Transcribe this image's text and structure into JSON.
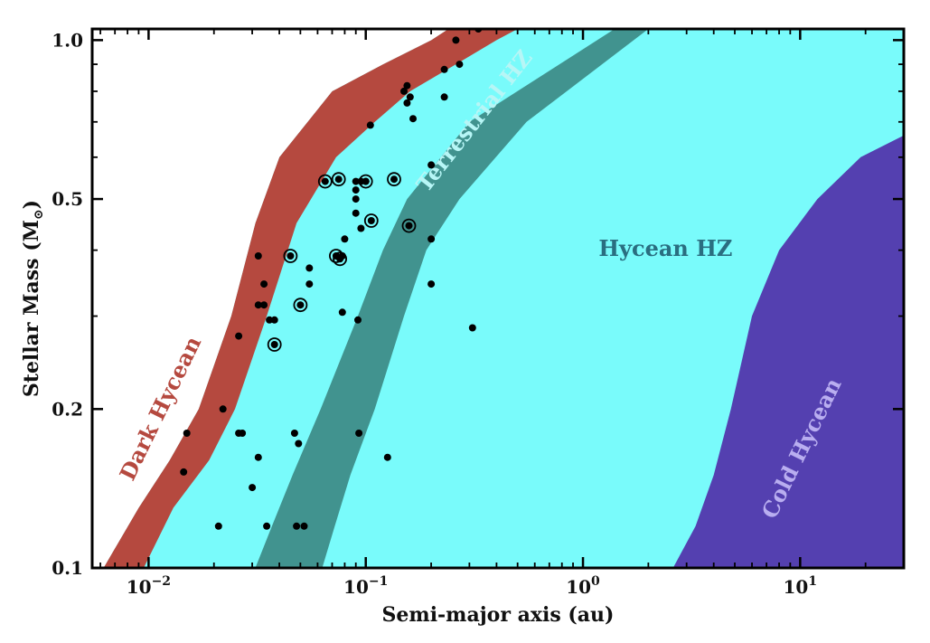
{
  "chart_data": {
    "type": "scatter",
    "xlabel": "Semi-major axis (au)",
    "ylabel": "Stellar Mass (M",
    "ylabel_symbol": "⊙",
    "ylabel_close": ")",
    "xscale": "log",
    "yscale": "log",
    "xlim": [
      0.0055,
      30
    ],
    "ylim": [
      0.1,
      1.05
    ],
    "x_ticks": [
      {
        "value": 0.01,
        "base": "10",
        "exp": "−2"
      },
      {
        "value": 0.1,
        "base": "10",
        "exp": "−1"
      },
      {
        "value": 1,
        "base": "10",
        "exp": "0"
      },
      {
        "value": 10,
        "base": "10",
        "exp": "1"
      }
    ],
    "y_ticks": [
      {
        "value": 0.1,
        "label": "0.1"
      },
      {
        "value": 0.2,
        "label": "0.2"
      },
      {
        "value": 0.5,
        "label": "0.5"
      },
      {
        "value": 1.0,
        "label": "1.0"
      }
    ],
    "colors": {
      "hycean": "#79fbfb",
      "dark": "#b5493f",
      "terrestrial": "#41938f",
      "cold": "#5440b0",
      "points": "#000000"
    },
    "regions": [
      {
        "name": "Dark Hycean",
        "key": "dark",
        "left": [
          [
            0.1,
            0.0062
          ],
          [
            0.13,
            0.009
          ],
          [
            0.16,
            0.0125
          ],
          [
            0.2,
            0.017
          ],
          [
            0.3,
            0.024
          ],
          [
            0.45,
            0.031
          ],
          [
            0.6,
            0.04
          ],
          [
            0.8,
            0.07
          ],
          [
            0.9,
            0.12
          ],
          [
            1.0,
            0.2
          ],
          [
            1.05,
            0.24
          ]
        ],
        "right": [
          [
            0.1,
            0.0095
          ],
          [
            0.13,
            0.013
          ],
          [
            0.16,
            0.019
          ],
          [
            0.2,
            0.025
          ],
          [
            0.3,
            0.035
          ],
          [
            0.45,
            0.048
          ],
          [
            0.6,
            0.073
          ],
          [
            0.7,
            0.11
          ],
          [
            0.8,
            0.16
          ],
          [
            0.9,
            0.26
          ],
          [
            1.0,
            0.4
          ],
          [
            1.05,
            0.5
          ]
        ]
      },
      {
        "name": "Terrestrial HZ",
        "key": "terrestrial",
        "left": [
          [
            0.1,
            0.031
          ],
          [
            0.12,
            0.037
          ],
          [
            0.15,
            0.046
          ],
          [
            0.2,
            0.062
          ],
          [
            0.3,
            0.092
          ],
          [
            0.4,
            0.12
          ],
          [
            0.5,
            0.155
          ],
          [
            0.7,
            0.3
          ],
          [
            1.05,
            1.4
          ]
        ],
        "right": [
          [
            0.1,
            0.063
          ],
          [
            0.12,
            0.072
          ],
          [
            0.15,
            0.085
          ],
          [
            0.2,
            0.11
          ],
          [
            0.3,
            0.15
          ],
          [
            0.4,
            0.19
          ],
          [
            0.5,
            0.27
          ],
          [
            0.7,
            0.55
          ],
          [
            1.05,
            2.0
          ]
        ]
      },
      {
        "name": "Cold Hycean",
        "key": "cold",
        "left": [
          [
            0.1,
            2.6
          ],
          [
            0.12,
            3.3
          ],
          [
            0.15,
            4.0
          ],
          [
            0.2,
            4.8
          ],
          [
            0.3,
            6.0
          ],
          [
            0.4,
            8.0
          ],
          [
            0.5,
            12
          ],
          [
            0.6,
            19
          ],
          [
            0.66,
            30
          ]
        ]
      }
    ],
    "region_labels": [
      {
        "text": "Dark Hycean",
        "key": "dark"
      },
      {
        "text": "Terrestrial HZ",
        "key": "terrestrial"
      },
      {
        "text": "Hycean HZ",
        "key": "hycean_label"
      },
      {
        "text": "Cold Hycean",
        "key": "cold_label"
      }
    ],
    "points": [
      [
        0.33,
        1.05
      ],
      [
        0.26,
        1.0
      ],
      [
        0.27,
        0.9
      ],
      [
        0.23,
        0.88
      ],
      [
        0.155,
        0.82
      ],
      [
        0.15,
        0.8
      ],
      [
        0.16,
        0.78
      ],
      [
        0.23,
        0.78
      ],
      [
        0.155,
        0.76
      ],
      [
        0.165,
        0.71
      ],
      [
        0.105,
        0.69
      ],
      [
        0.2,
        0.58
      ],
      [
        0.09,
        0.54
      ],
      [
        0.095,
        0.54
      ],
      [
        0.1,
        0.54
      ],
      [
        0.09,
        0.52
      ],
      [
        0.09,
        0.5
      ],
      [
        0.09,
        0.47
      ],
      [
        0.095,
        0.44
      ],
      [
        0.2,
        0.42
      ],
      [
        0.08,
        0.42
      ],
      [
        0.055,
        0.37
      ],
      [
        0.078,
        0.39
      ],
      [
        0.032,
        0.39
      ],
      [
        0.055,
        0.345
      ],
      [
        0.034,
        0.345
      ],
      [
        0.2,
        0.345
      ],
      [
        0.032,
        0.315
      ],
      [
        0.034,
        0.315
      ],
      [
        0.078,
        0.305
      ],
      [
        0.036,
        0.295
      ],
      [
        0.038,
        0.295
      ],
      [
        0.092,
        0.295
      ],
      [
        0.31,
        0.285
      ],
      [
        0.026,
        0.275
      ],
      [
        0.022,
        0.2
      ],
      [
        0.015,
        0.18
      ],
      [
        0.026,
        0.18
      ],
      [
        0.027,
        0.18
      ],
      [
        0.047,
        0.18
      ],
      [
        0.093,
        0.18
      ],
      [
        0.049,
        0.172
      ],
      [
        0.032,
        0.162
      ],
      [
        0.126,
        0.162
      ],
      [
        0.0145,
        0.152
      ],
      [
        0.03,
        0.142
      ],
      [
        0.021,
        0.12
      ],
      [
        0.035,
        0.12
      ],
      [
        0.048,
        0.12
      ],
      [
        0.052,
        0.12
      ]
    ],
    "ringed_points": [
      [
        0.065,
        0.54
      ],
      [
        0.075,
        0.545
      ],
      [
        0.1,
        0.54
      ],
      [
        0.135,
        0.545
      ],
      [
        0.106,
        0.455
      ],
      [
        0.158,
        0.445
      ],
      [
        0.045,
        0.39
      ],
      [
        0.073,
        0.39
      ],
      [
        0.076,
        0.385
      ],
      [
        0.05,
        0.315
      ],
      [
        0.038,
        0.265
      ]
    ]
  }
}
